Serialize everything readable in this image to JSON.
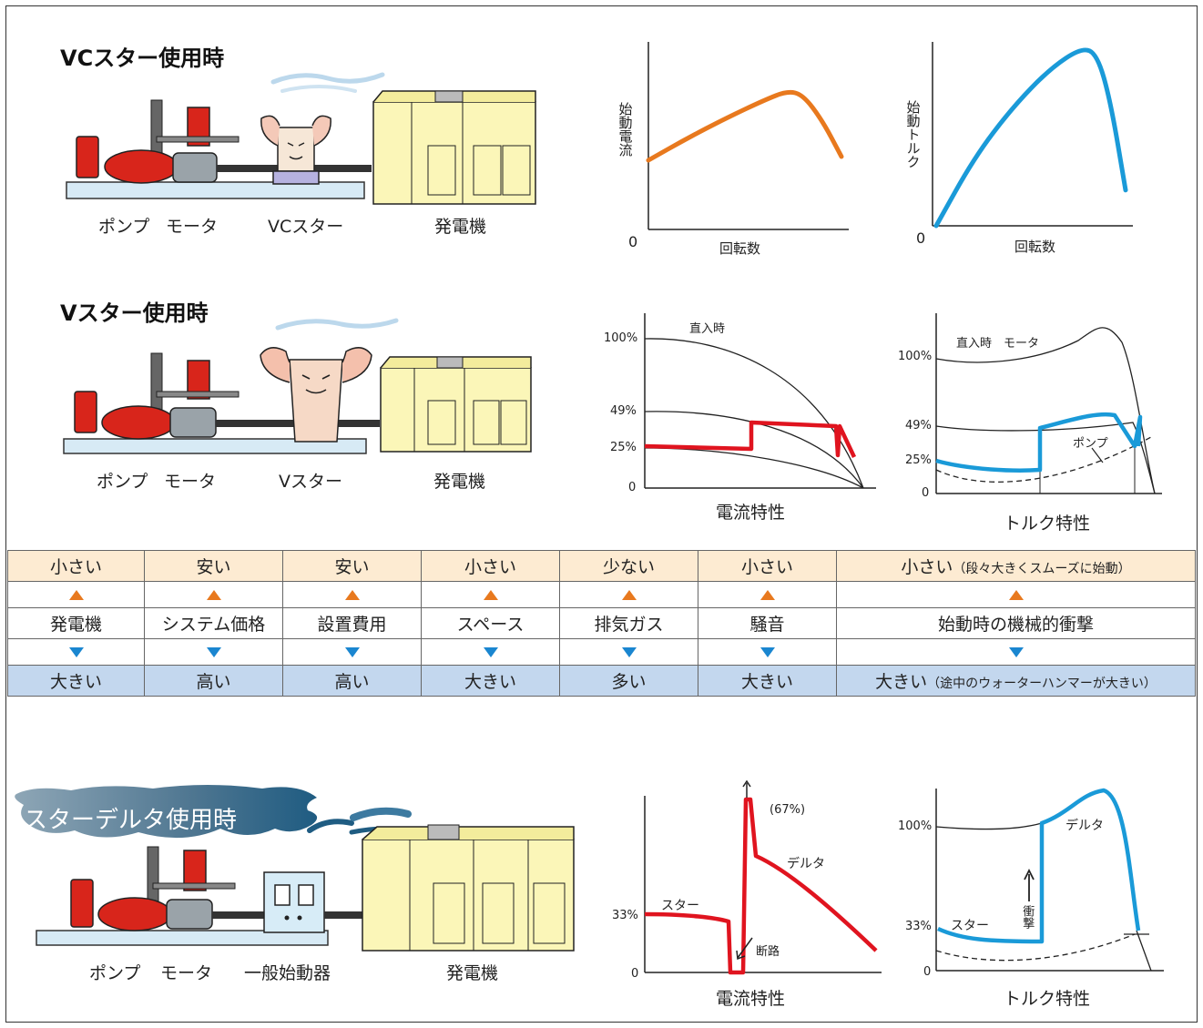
{
  "sections": {
    "vc": {
      "title": "VCスター使用時",
      "labels": {
        "pump": "ポンプ",
        "motor": "モータ",
        "starter": "VCスター",
        "generator": "発電機"
      },
      "chart_current": {
        "ylabel": "始動電流",
        "xlabel": "回転数",
        "origin": "0"
      },
      "chart_torque": {
        "ylabel": "始動トルク",
        "xlabel": "回転数",
        "origin": "0"
      }
    },
    "v": {
      "title": "Vスター使用時",
      "labels": {
        "pump": "ポンプ",
        "motor": "モータ",
        "starter": "Vスター",
        "generator": "発電機"
      },
      "chart_current": {
        "caption": "電流特性",
        "annotation": "直入時",
        "ticks": [
          "100%",
          "49%",
          "25%",
          "0"
        ]
      },
      "chart_torque": {
        "caption": "トルク特性",
        "annotation": "直入時　モータ",
        "pump_label": "ポンプ",
        "ticks": [
          "100%",
          "49%",
          "25%",
          "0"
        ]
      }
    },
    "sd": {
      "title": "スターデルタ使用時",
      "labels": {
        "pump": "ポンプ",
        "motor": "モータ",
        "starter": "一般始動器",
        "generator": "発電機"
      },
      "chart_current": {
        "caption": "電流特性",
        "star": "スター",
        "delta": "デルタ",
        "peak": "(67%)",
        "cut": "断路",
        "ticks": [
          "33%",
          "0"
        ]
      },
      "chart_torque": {
        "caption": "トルク特性",
        "star": "スター",
        "delta": "デルタ",
        "impact": "衝撃",
        "ticks": [
          "100%",
          "33%",
          "0"
        ]
      }
    }
  },
  "comparison": {
    "top": [
      {
        "text": "小さい"
      },
      {
        "text": "安い"
      },
      {
        "text": "安い"
      },
      {
        "text": "小さい"
      },
      {
        "text": "少ない"
      },
      {
        "text": "小さい"
      },
      {
        "text": "小さい",
        "note": "（段々大きくスムーズに始動）"
      }
    ],
    "items": [
      "発電機",
      "システム価格",
      "設置費用",
      "スペース",
      "排気ガス",
      "騒音",
      "始動時の機械的衝撃"
    ],
    "bottom": [
      {
        "text": "大きい"
      },
      {
        "text": "高い"
      },
      {
        "text": "高い"
      },
      {
        "text": "大きい"
      },
      {
        "text": "多い"
      },
      {
        "text": "大きい"
      },
      {
        "text": "大きい",
        "note": "（途中のウォーターハンマーが大きい）"
      }
    ]
  },
  "colors": {
    "orange": "#e8791e",
    "blue": "#1a9ad8",
    "red": "#e0141f",
    "generator": "#fbf6b8",
    "pump_red": "#d8251b",
    "top_row": "#fdebd2",
    "bottom_row": "#c3d7ee"
  },
  "chart_data": [
    {
      "type": "line",
      "ylabel": "始動電流",
      "xlabel": "回転数",
      "series": [
        {
          "x": [
            0,
            0.2,
            0.4,
            0.6,
            0.72,
            0.8,
            0.9,
            1.0
          ],
          "y": [
            0.38,
            0.5,
            0.61,
            0.71,
            0.76,
            0.74,
            0.6,
            0.4
          ]
        }
      ]
    },
    {
      "type": "line",
      "ylabel": "始動トルク",
      "xlabel": "回転数",
      "series": [
        {
          "x": [
            0,
            0.2,
            0.4,
            0.6,
            0.77,
            0.85,
            0.92,
            1.0
          ],
          "y": [
            0,
            0.38,
            0.66,
            0.88,
            1.0,
            0.96,
            0.7,
            0.2
          ]
        }
      ]
    }
  ]
}
